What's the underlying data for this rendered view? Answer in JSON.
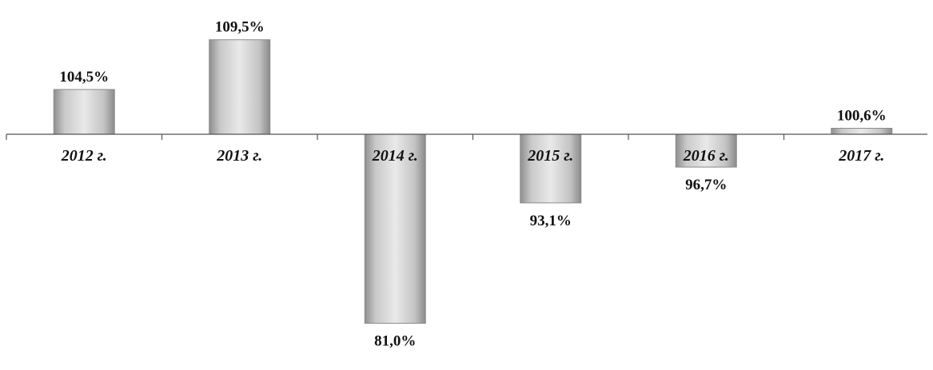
{
  "chart_data": {
    "type": "bar",
    "categories": [
      "2012 г.",
      "2013 г.",
      "2014 г.",
      "2015 г.",
      "2016 г.",
      "2017 г."
    ],
    "values": [
      104.5,
      109.5,
      81.0,
      93.1,
      96.7,
      100.6
    ],
    "value_labels": [
      "104,5%",
      "109,5%",
      "81,0%",
      "93,1%",
      "96,7%",
      "100,6%"
    ],
    "baseline": 100,
    "title": "",
    "xlabel": "",
    "ylabel": "",
    "ylim": [
      80,
      111
    ],
    "grid": false,
    "legend": "none",
    "colors": {
      "bar_fill": "#bdbdbd",
      "bar_edge": "#8a8a8a",
      "axis": "#555555",
      "text": "#111111"
    }
  }
}
